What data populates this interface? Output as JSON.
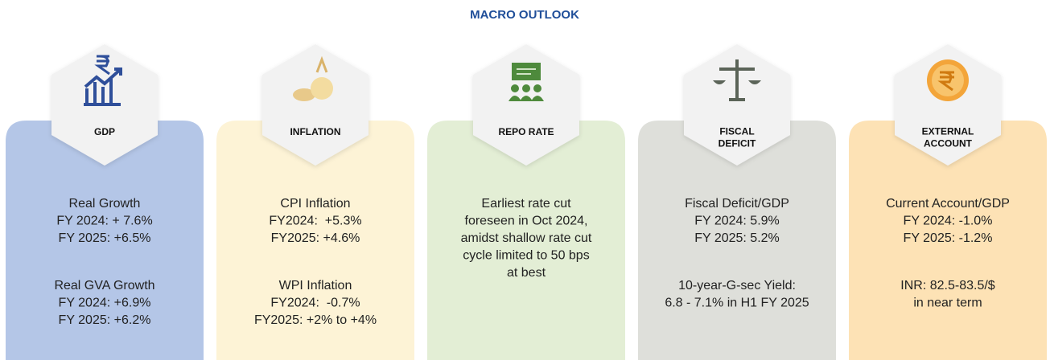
{
  "header": {
    "title": "MACRO OUTLOOK"
  },
  "cards": [
    {
      "label": [
        "GDP"
      ],
      "blocks": [
        [
          "Real Growth",
          "FY 2024: + 7.6%",
          "FY 2025: +6.5%"
        ],
        [
          "Real GVA Growth",
          "FY 2024: +6.9%",
          "FY 2025: +6.2%"
        ]
      ]
    },
    {
      "label": [
        "INFLATION"
      ],
      "blocks": [
        [
          "CPI Inflation",
          "FY2024:  +5.3%",
          "FY2025: +4.6%"
        ],
        [
          "WPI Inflation",
          "FY2024:  -0.7%",
          "FY2025: +2% to +4%"
        ]
      ]
    },
    {
      "label": [
        "REPO RATE"
      ],
      "blocks": [
        [
          "Earliest rate cut",
          "foreseen in Oct 2024,",
          "amidst shallow rate cut",
          "cycle limited to 50 bps",
          "at best"
        ]
      ]
    },
    {
      "label": [
        "FISCAL",
        "DEFICIT"
      ],
      "blocks": [
        [
          "Fiscal Deficit/GDP",
          "FY 2024: 5.9%",
          "FY 2025: 5.2%"
        ],
        [
          "10-year-G-sec Yield:",
          "6.8 - 7.1% in H1 FY 2025"
        ]
      ]
    },
    {
      "label": [
        "EXTERNAL",
        "ACCOUNT"
      ],
      "blocks": [
        [
          "Current Account/GDP",
          "FY 2024: -1.0%",
          "FY 2025: -1.2%"
        ],
        [
          "INR: 82.5-83.5/$",
          "in near term"
        ]
      ]
    }
  ]
}
